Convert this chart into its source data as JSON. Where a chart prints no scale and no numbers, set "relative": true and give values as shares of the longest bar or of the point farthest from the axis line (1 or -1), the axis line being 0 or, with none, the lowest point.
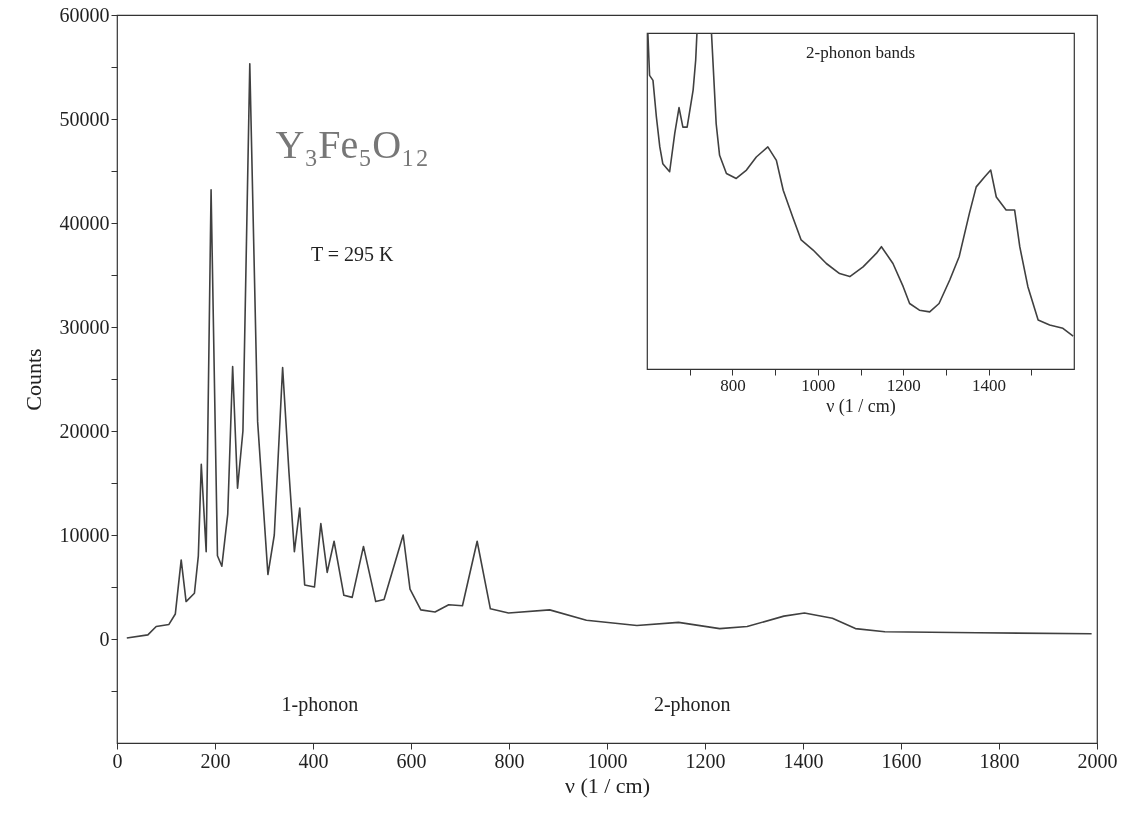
{
  "chart_data": [
    {
      "type": "line",
      "xlabel": "ν (1 / cm)",
      "ylabel": "Counts",
      "xlim": [
        0,
        2000
      ],
      "xticks": [
        0,
        200,
        400,
        600,
        800,
        1000,
        1200,
        1400,
        1600,
        1800,
        2000
      ],
      "ylim": [
        -10000,
        60000
      ],
      "yticks": [
        {
          "value": -5000,
          "label": null
        },
        0,
        {
          "value": 5000,
          "label": null
        },
        10000,
        {
          "value": 15000,
          "label": null
        },
        20000,
        {
          "value": 25000,
          "label": null
        },
        30000,
        {
          "value": 35000,
          "label": null
        },
        40000,
        {
          "value": 45000,
          "label": null
        },
        50000,
        {
          "value": 55000,
          "label": null
        },
        60000
      ],
      "grid": false,
      "marker": "none",
      "line_style": "solid",
      "annotations": [
        "Y₃Fe₅O₁₂",
        "T = 295 K",
        "1-phonon",
        "2-phonon"
      ],
      "series": [
        {
          "color": "#404040",
          "x": [
            20,
            63,
            80,
            93,
            106,
            119,
            131,
            141,
            158,
            166,
            172,
            182,
            192,
            205,
            214,
            226,
            236,
            246,
            257,
            271,
            287,
            308,
            321,
            338,
            351,
            362,
            373,
            383,
            403,
            416,
            429,
            443,
            463,
            480,
            503,
            528,
            545,
            584,
            598,
            620,
            649,
            677,
            705,
            735,
            762,
            799,
            883,
            958,
            1061,
            1146,
            1230,
            1286,
            1361,
            1403,
            1460,
            1507,
            1567,
            1755,
            1989
          ],
          "values": [
            100,
            400,
            1200,
            1300,
            1400,
            2400,
            7600,
            3600,
            4400,
            8000,
            16800,
            8400,
            43200,
            8000,
            7000,
            12000,
            26200,
            14500,
            20000,
            55300,
            20900,
            6200,
            10000,
            26100,
            16000,
            8400,
            12600,
            5200,
            5000,
            11100,
            6400,
            9400,
            4200,
            4000,
            8900,
            3600,
            3800,
            10000,
            4800,
            2800,
            2600,
            3300,
            3200,
            9400,
            2900,
            2500,
            2800,
            1800,
            1300,
            1600,
            1000,
            1200,
            2200,
            2500,
            2000,
            1000,
            700,
            600,
            500
          ]
        }
      ]
    },
    {
      "type": "line",
      "xlabel": "ν (1 / cm)",
      "relative": true,
      "xlim": [
        600,
        1600
      ],
      "xticks": [
        {
          "value": 700,
          "label": null
        },
        800,
        {
          "value": 900,
          "label": null
        },
        1000,
        {
          "value": 1100,
          "label": null
        },
        1200,
        {
          "value": 1300,
          "label": null
        },
        1400,
        {
          "value": 1500,
          "label": null
        }
      ],
      "grid": false,
      "marker": "none",
      "line_style": "solid",
      "annotations": [
        "2-phonon bands"
      ],
      "series": [
        {
          "color": "#404040",
          "x": [
            602,
            606,
            614,
            622,
            630,
            637,
            653,
            665,
            675,
            684,
            694,
            708,
            714,
            717,
            734,
            751,
            762,
            770,
            786,
            809,
            833,
            856,
            883,
            903,
            919,
            941,
            961,
            989,
            1020,
            1051,
            1075,
            1106,
            1137,
            1149,
            1176,
            1200,
            1215,
            1238,
            1262,
            1284,
            1309,
            1331,
            1355,
            1371,
            1391,
            1405,
            1418,
            1441,
            1461,
            1473,
            1492,
            1516,
            1543,
            1574,
            1598
          ],
          "values": [
            1.0,
            0.874,
            0.859,
            0.75,
            0.661,
            0.611,
            0.587,
            0.701,
            0.778,
            0.72,
            0.72,
            0.83,
            0.919,
            1.0,
            null,
            1.0,
            0.73,
            0.636,
            0.582,
            0.567,
            0.592,
            0.631,
            0.661,
            0.621,
            0.532,
            0.453,
            0.384,
            0.354,
            0.314,
            0.284,
            0.275,
            0.304,
            0.344,
            0.364,
            0.314,
            0.245,
            0.195,
            0.175,
            0.17,
            0.195,
            0.265,
            0.334,
            0.463,
            0.542,
            0.572,
            0.592,
            0.512,
            0.473,
            0.473,
            0.364,
            0.245,
            0.146,
            0.131,
            0.121,
            0.098
          ]
        }
      ]
    }
  ]
}
